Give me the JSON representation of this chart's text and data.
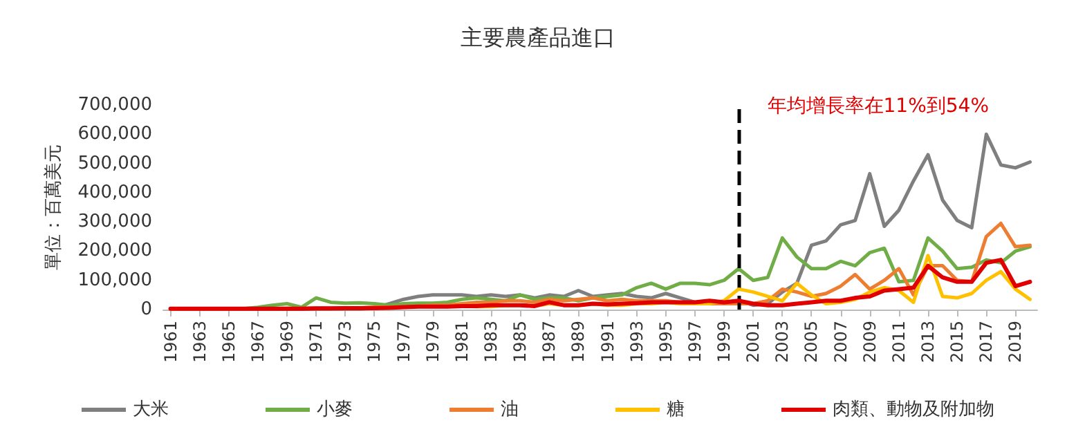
{
  "chart_data": {
    "type": "line",
    "title": "主要農產品進口",
    "ylabel": "單位：百萬美元",
    "x": [
      1961,
      1962,
      1963,
      1964,
      1965,
      1966,
      1967,
      1968,
      1969,
      1970,
      1971,
      1972,
      1973,
      1974,
      1975,
      1976,
      1977,
      1978,
      1979,
      1980,
      1981,
      1982,
      1983,
      1984,
      1985,
      1986,
      1987,
      1988,
      1989,
      1990,
      1991,
      1992,
      1993,
      1994,
      1995,
      1996,
      1997,
      1998,
      1999,
      2000,
      2001,
      2002,
      2003,
      2004,
      2005,
      2006,
      2007,
      2008,
      2009,
      2010,
      2011,
      2012,
      2013,
      2014,
      2015,
      2016,
      2017,
      2018,
      2019,
      2020
    ],
    "xlim": [
      1960.5,
      2020.5
    ],
    "xticks": [
      1961,
      1963,
      1965,
      1967,
      1969,
      1971,
      1973,
      1975,
      1977,
      1979,
      1981,
      1983,
      1985,
      1987,
      1989,
      1991,
      1993,
      1995,
      1997,
      1999,
      2001,
      2003,
      2005,
      2007,
      2009,
      2011,
      2013,
      2015,
      2017,
      2019
    ],
    "series": [
      {
        "name": "大米",
        "color": "#7f7f7f",
        "values": [
          2000,
          2000,
          2000,
          2000,
          2000,
          2000,
          2000,
          2000,
          2000,
          2000,
          2000,
          2000,
          2000,
          2000,
          5000,
          20000,
          35000,
          45000,
          50000,
          50000,
          50000,
          45000,
          50000,
          45000,
          50000,
          40000,
          50000,
          45000,
          65000,
          45000,
          50000,
          55000,
          45000,
          40000,
          55000,
          40000,
          25000,
          20000,
          25000,
          30000,
          15000,
          20000,
          60000,
          90000,
          220000,
          235000,
          290000,
          305000,
          465000,
          285000,
          340000,
          440000,
          530000,
          375000,
          305000,
          280000,
          600000,
          495000,
          485000,
          505000
        ]
      },
      {
        "name": "小麥",
        "color": "#70ad47",
        "values": [
          null,
          null,
          null,
          null,
          3000,
          3000,
          8000,
          15000,
          20000,
          8000,
          40000,
          25000,
          22000,
          23000,
          20000,
          15000,
          20000,
          22000,
          22000,
          25000,
          35000,
          40000,
          35000,
          30000,
          50000,
          35000,
          40000,
          40000,
          30000,
          40000,
          45000,
          50000,
          75000,
          90000,
          70000,
          90000,
          90000,
          85000,
          100000,
          140000,
          100000,
          110000,
          245000,
          180000,
          140000,
          140000,
          165000,
          150000,
          195000,
          210000,
          95000,
          100000,
          245000,
          200000,
          140000,
          145000,
          170000,
          160000,
          200000,
          215000
        ]
      },
      {
        "name": "油",
        "color": "#ed7d31",
        "values": [
          2000,
          2000,
          2000,
          2000,
          2000,
          3000,
          3000,
          3000,
          4000,
          4000,
          5000,
          5000,
          6000,
          6000,
          8000,
          8000,
          10000,
          12000,
          15000,
          15000,
          20000,
          25000,
          25000,
          30000,
          30000,
          25000,
          35000,
          30000,
          35000,
          40000,
          30000,
          35000,
          30000,
          30000,
          30000,
          25000,
          25000,
          20000,
          20000,
          20000,
          20000,
          30000,
          70000,
          60000,
          45000,
          55000,
          80000,
          120000,
          70000,
          100000,
          140000,
          50000,
          150000,
          150000,
          100000,
          95000,
          250000,
          295000,
          215000,
          220000
        ]
      },
      {
        "name": "糖",
        "color": "#ffc000",
        "values": [
          null,
          null,
          null,
          null,
          null,
          null,
          null,
          null,
          null,
          null,
          null,
          null,
          null,
          null,
          null,
          null,
          null,
          null,
          null,
          null,
          12000,
          10000,
          10000,
          15000,
          15000,
          12000,
          20000,
          15000,
          15000,
          20000,
          15000,
          15000,
          20000,
          20000,
          25000,
          20000,
          20000,
          20000,
          30000,
          70000,
          60000,
          45000,
          30000,
          90000,
          50000,
          20000,
          25000,
          35000,
          60000,
          75000,
          65000,
          25000,
          185000,
          45000,
          40000,
          55000,
          100000,
          130000,
          70000,
          35000
        ]
      },
      {
        "name": "肉類、動物及附加物",
        "color": "#e00000",
        "values": [
          3000,
          3000,
          3000,
          3000,
          3000,
          3000,
          3000,
          3000,
          3000,
          3000,
          4000,
          4000,
          5000,
          5000,
          5000,
          6000,
          8000,
          10000,
          10000,
          10000,
          12000,
          12000,
          15000,
          15000,
          15000,
          12000,
          25000,
          15000,
          15000,
          20000,
          18000,
          20000,
          22000,
          25000,
          25000,
          25000,
          25000,
          30000,
          25000,
          30000,
          20000,
          15000,
          15000,
          20000,
          25000,
          30000,
          30000,
          40000,
          45000,
          65000,
          70000,
          75000,
          150000,
          110000,
          95000,
          95000,
          160000,
          170000,
          80000,
          95000
        ]
      }
    ],
    "ylim": [
      0,
      700000
    ],
    "yticks": [
      0,
      {
        "value": 100000,
        "label": "100,000"
      },
      {
        "value": 200000,
        "label": "200,000"
      },
      {
        "value": 300000,
        "label": "300,000"
      },
      {
        "value": 400000,
        "label": "400,000"
      },
      {
        "value": 500000,
        "label": "500,000"
      },
      {
        "value": 600000,
        "label": "600,000"
      },
      {
        "value": 700000,
        "label": "700,000"
      }
    ],
    "ref_lines": [
      {
        "axis": "x",
        "value": 2000,
        "color": "#000000",
        "line_style": "dashed"
      }
    ],
    "annotations": [
      "年均增長率在11%到54%"
    ],
    "grid": false,
    "legend": "bottom",
    "marker": "none",
    "line_style": "solid"
  }
}
